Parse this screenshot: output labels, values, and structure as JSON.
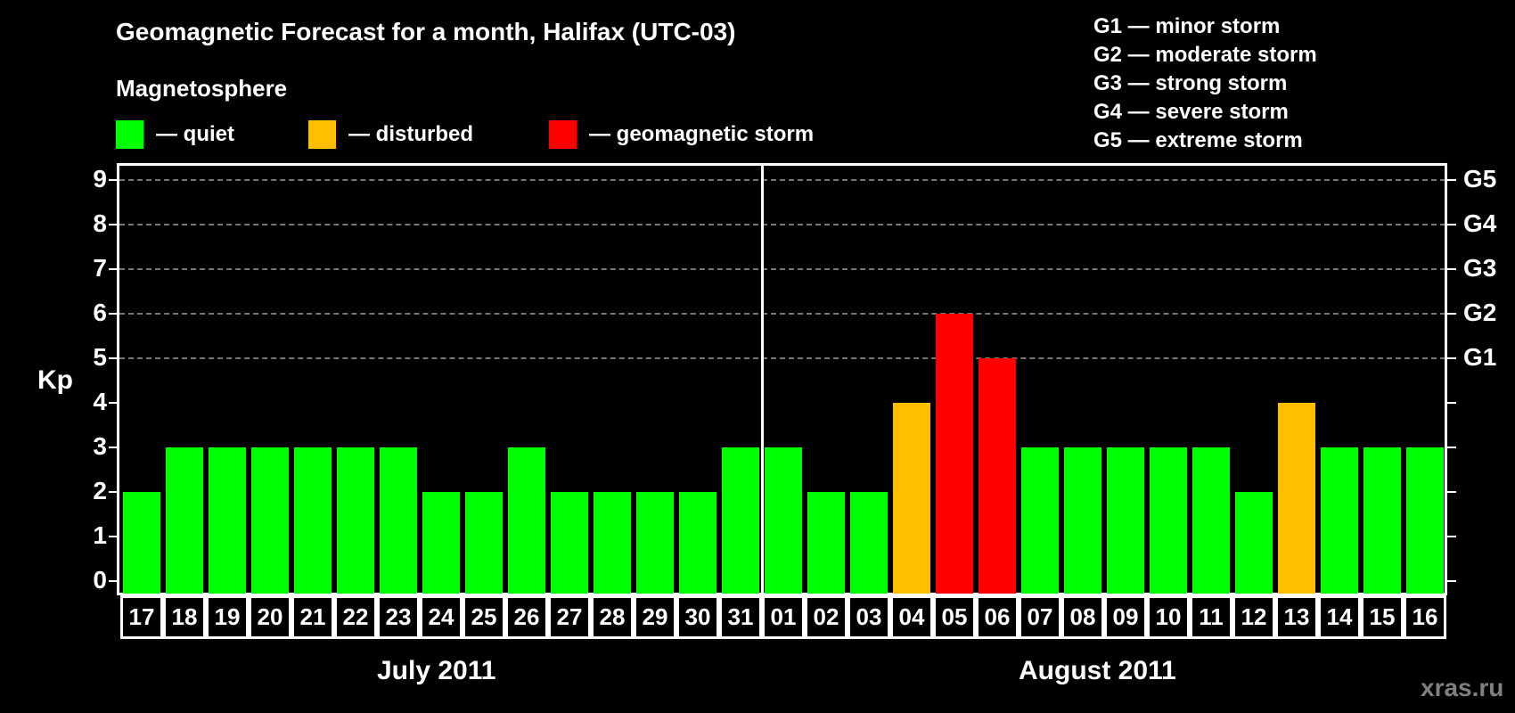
{
  "title": "Geomagnetic Forecast for a month, Halifax (UTC-03)",
  "subtitle": "Magnetosphere",
  "legend": [
    {
      "label": "— quiet",
      "color": "#00FF00"
    },
    {
      "label": "— disturbed",
      "color": "#FFBF00"
    },
    {
      "label": "— geomagnetic storm",
      "color": "#FF0000"
    }
  ],
  "g_scale_legend": [
    "G1 — minor storm",
    "G2 — moderate storm",
    "G3 — strong storm",
    "G4 — severe storm",
    "G5 — extreme storm"
  ],
  "y_axis": {
    "label": "Kp",
    "ticks": [
      "0",
      "1",
      "2",
      "3",
      "4",
      "5",
      "6",
      "7",
      "8",
      "9"
    ]
  },
  "right_axis": {
    "labels": [
      {
        "kp": 5,
        "label": "G1"
      },
      {
        "kp": 6,
        "label": "G2"
      },
      {
        "kp": 7,
        "label": "G3"
      },
      {
        "kp": 8,
        "label": "G4"
      },
      {
        "kp": 9,
        "label": "G5"
      }
    ]
  },
  "months": [
    {
      "label": "July 2011"
    },
    {
      "label": "August 2011"
    }
  ],
  "watermark": "xras.ru",
  "chart_data": {
    "type": "bar",
    "title": "Geomagnetic Forecast for a month, Halifax (UTC-03)",
    "xlabel": "",
    "ylabel": "Kp",
    "ylim": [
      0,
      9
    ],
    "grid": true,
    "categories": [
      "17",
      "18",
      "19",
      "20",
      "21",
      "22",
      "23",
      "24",
      "25",
      "26",
      "27",
      "28",
      "29",
      "30",
      "31",
      "01",
      "02",
      "03",
      "04",
      "05",
      "06",
      "07",
      "08",
      "09",
      "10",
      "11",
      "12",
      "13",
      "14",
      "15",
      "16"
    ],
    "category_months": [
      "July 2011",
      "July 2011",
      "July 2011",
      "July 2011",
      "July 2011",
      "July 2011",
      "July 2011",
      "July 2011",
      "July 2011",
      "July 2011",
      "July 2011",
      "July 2011",
      "July 2011",
      "July 2011",
      "July 2011",
      "August 2011",
      "August 2011",
      "August 2011",
      "August 2011",
      "August 2011",
      "August 2011",
      "August 2011",
      "August 2011",
      "August 2011",
      "August 2011",
      "August 2011",
      "August 2011",
      "August 2011",
      "August 2011",
      "August 2011",
      "August 2011"
    ],
    "values": [
      2,
      3,
      3,
      3,
      3,
      3,
      3,
      2,
      2,
      3,
      2,
      2,
      2,
      2,
      3,
      3,
      2,
      2,
      4,
      6,
      5,
      3,
      3,
      3,
      3,
      3,
      2,
      4,
      3,
      3,
      3
    ],
    "status": [
      "quiet",
      "quiet",
      "quiet",
      "quiet",
      "quiet",
      "quiet",
      "quiet",
      "quiet",
      "quiet",
      "quiet",
      "quiet",
      "quiet",
      "quiet",
      "quiet",
      "quiet",
      "quiet",
      "quiet",
      "quiet",
      "disturbed",
      "storm",
      "storm",
      "quiet",
      "quiet",
      "quiet",
      "quiet",
      "quiet",
      "quiet",
      "disturbed",
      "quiet",
      "quiet",
      "quiet"
    ],
    "status_colors": {
      "quiet": "#00FF00",
      "disturbed": "#FFBF00",
      "storm": "#FF0000"
    },
    "legend": [
      "quiet",
      "disturbed",
      "geomagnetic storm"
    ],
    "legend_position": "top-left",
    "secondary_axis": {
      "G1": 5,
      "G2": 6,
      "G3": 7,
      "G4": 8,
      "G5": 9
    }
  }
}
